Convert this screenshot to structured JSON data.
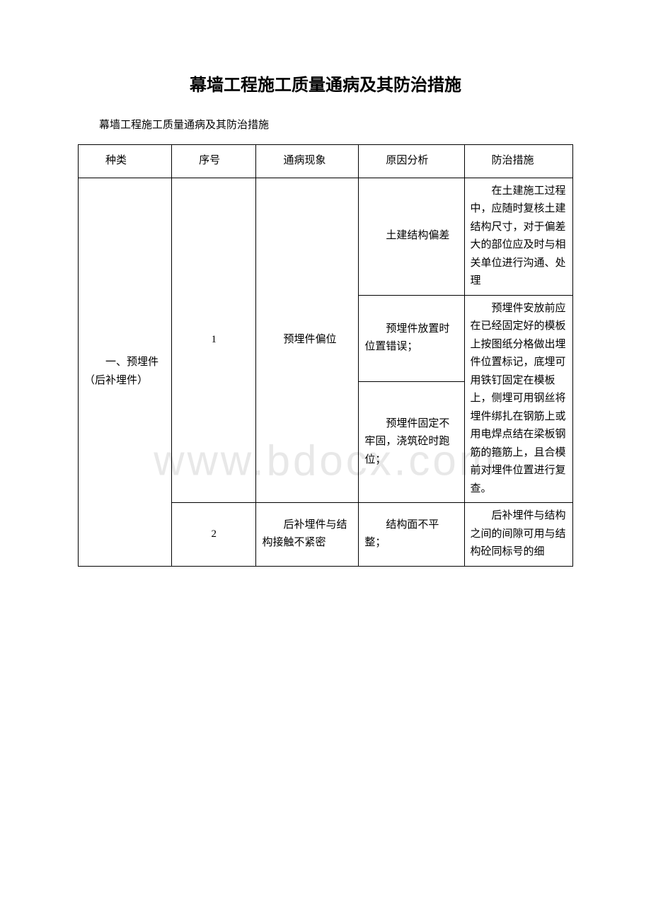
{
  "watermark": "www.bdocx.com",
  "title": "幕墙工程施工质量通病及其防治措施",
  "subtitle": "幕墙工程施工质量通病及其防治措施",
  "table": {
    "headers": {
      "type": "种类",
      "num": "序号",
      "symptom": "通病现象",
      "analysis": "原因分析",
      "measure": "防治措施"
    },
    "category1": "一、预埋件（后补埋件）",
    "row1": {
      "num": "1",
      "symptom": "预埋件偏位",
      "analysis1": "土建结构偏差",
      "measure1": "在土建施工过程中，应随时复核土建结构尺寸，对于偏差大的部位应及时与相关单位进行沟通、处理",
      "analysis2": "预埋件放置时位置错误；",
      "measure2a": "预埋件安放前应在已经固定好的模板上按",
      "analysis3": "预埋件固定不牢固，浇筑砼时跑位；",
      "measure2b": "图纸分格做出埋件位置标记，底埋可用铁钉固定在模板上，侧埋可用钢丝将埋件绑扎在钢筋上或用电焊点结在梁板钢筋的箍筋上，且合模前对埋件位置进行复查。"
    },
    "row2": {
      "num": "2",
      "symptom": "后补埋件与结构接触不紧密",
      "analysis": "结构面不平整；",
      "measure": "后补埋件与结构之间的间隙可用与结构砼同标号的细"
    }
  }
}
